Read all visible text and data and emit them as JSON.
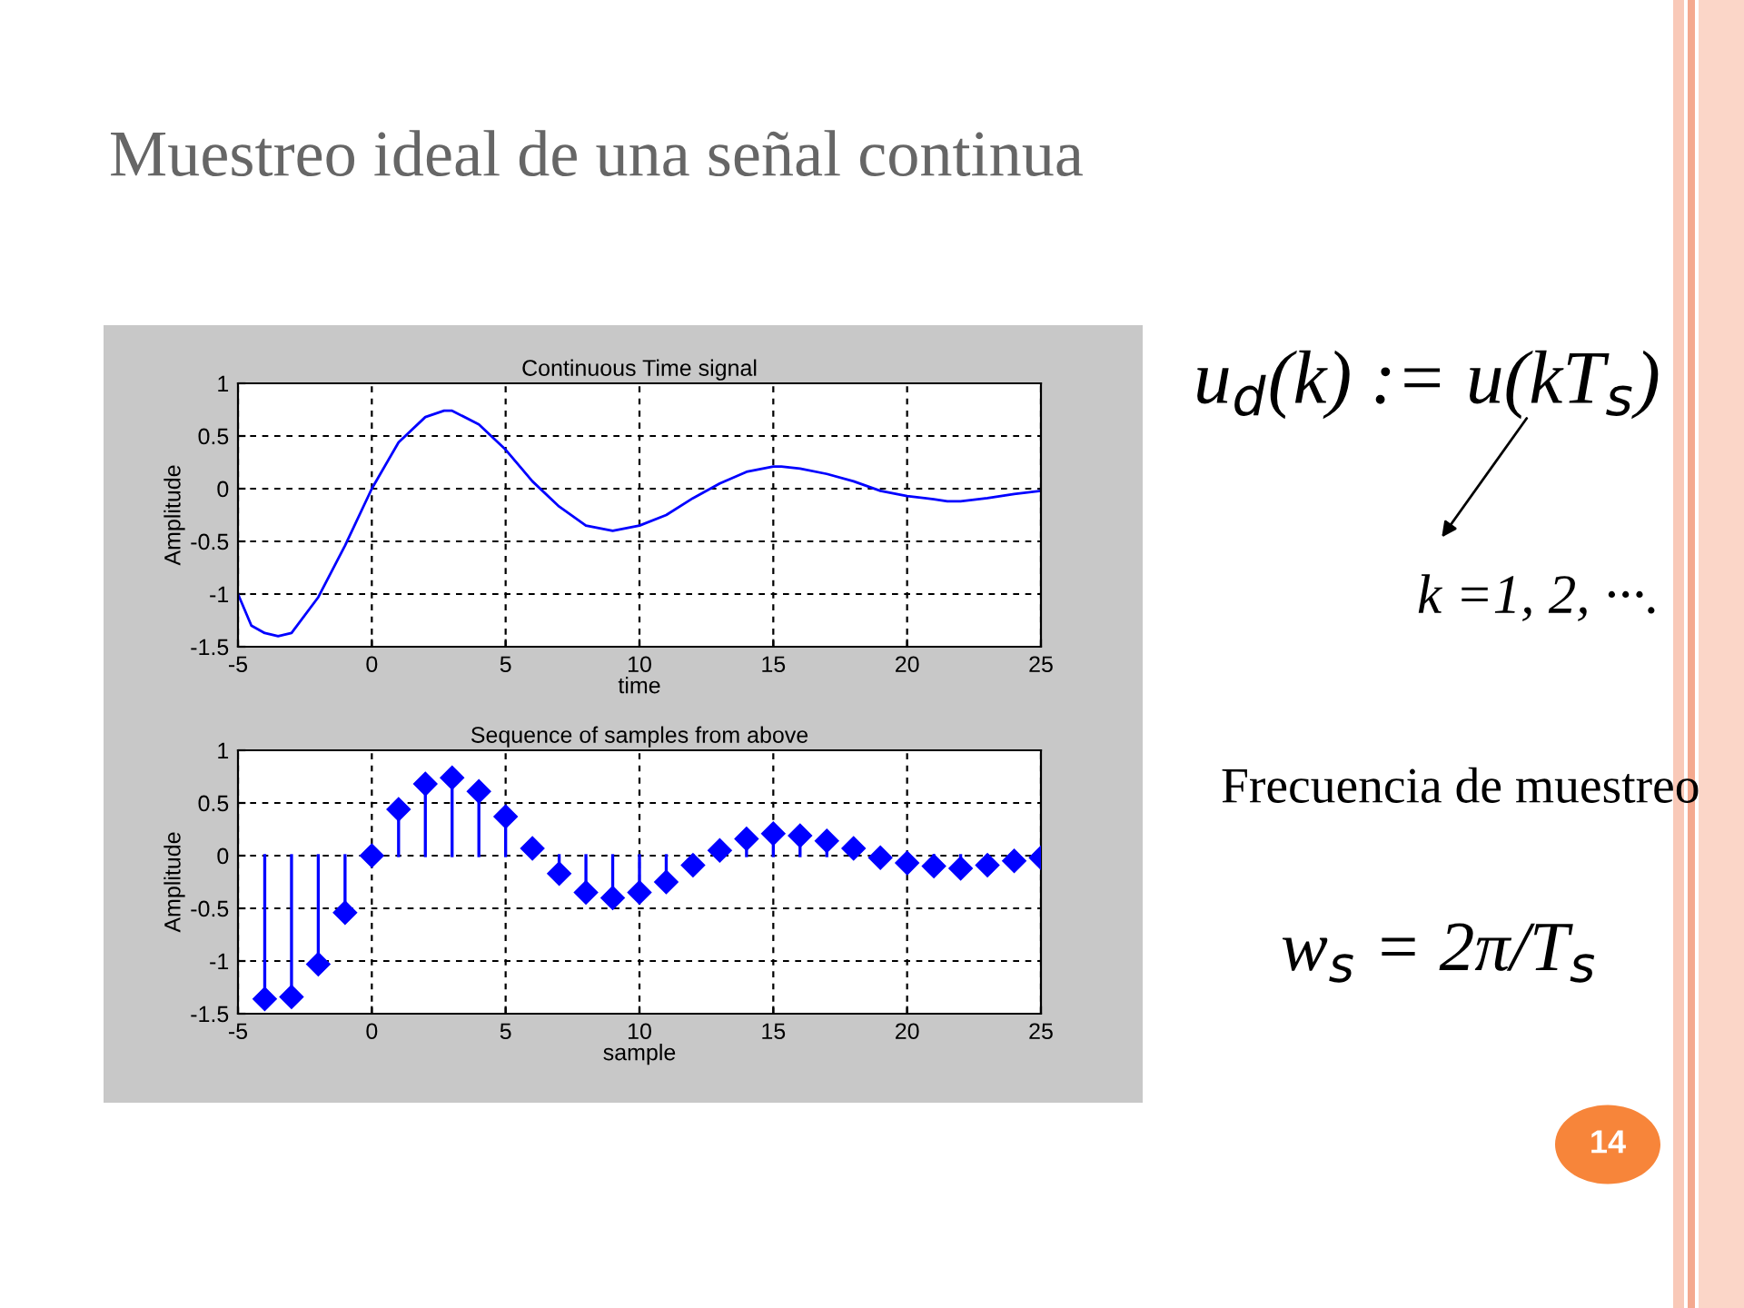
{
  "chart_data": [
    {
      "type": "line",
      "title": "Continuous Time signal",
      "xlabel": "time",
      "ylabel": "Amplitude",
      "x": [
        -5,
        -4.5,
        -4,
        -3.5,
        -3,
        -2,
        -1,
        0,
        1,
        2,
        2.7,
        3,
        4,
        5,
        6,
        7,
        8,
        9,
        10,
        11,
        12,
        13,
        14,
        15,
        15.3,
        16,
        17,
        18,
        19,
        20,
        21,
        21.5,
        22,
        23,
        24,
        25
      ],
      "series": [
        {
          "color": "#0000ff",
          "values": [
            -1.0,
            -1.3,
            -1.37,
            -1.4,
            -1.37,
            -1.03,
            -0.54,
            0,
            0.44,
            0.68,
            0.74,
            0.74,
            0.61,
            0.37,
            0.07,
            -0.17,
            -0.35,
            -0.4,
            -0.35,
            -0.25,
            -0.09,
            0.05,
            0.16,
            0.21,
            0.21,
            0.19,
            0.14,
            0.07,
            -0.02,
            -0.07,
            -0.1,
            -0.12,
            -0.12,
            -0.09,
            -0.05,
            -0.02
          ]
        }
      ],
      "xlim": [
        -5,
        25
      ],
      "xticks": [
        -5,
        0,
        5,
        10,
        15,
        20,
        25
      ],
      "ylim": [
        -1.5,
        1
      ],
      "yticks": [
        -1.5,
        -1,
        -0.5,
        0,
        0.5,
        1
      ],
      "grid": true,
      "line_style": "solid",
      "marker": "none",
      "annotations": [
        "Muestreo ideal de una señal continua",
        "u$_{d}$(k) := u(kT$_{s}$)",
        "k =1, 2, ···.",
        "Frecuencia de muestreo",
        "w$_{s}$ = 2π/T$_{s}$",
        "14"
      ]
    },
    {
      "type": "lollipop",
      "title": "Sequence of samples from above",
      "xlabel": "sample",
      "ylabel": "Amplitude",
      "x": [
        -4,
        -3,
        -2,
        -1,
        0,
        1,
        2,
        3,
        4,
        5,
        6,
        7,
        8,
        9,
        10,
        11,
        12,
        13,
        14,
        15,
        16,
        17,
        18,
        19,
        20,
        21,
        22,
        23,
        24,
        25
      ],
      "series": [
        {
          "color": "#0000ff",
          "values": [
            -1.36,
            -1.34,
            -1.03,
            -0.54,
            0,
            0.44,
            0.68,
            0.74,
            0.61,
            0.37,
            0.07,
            -0.17,
            -0.35,
            -0.4,
            -0.35,
            -0.25,
            -0.09,
            0.05,
            0.16,
            0.21,
            0.19,
            0.14,
            0.07,
            -0.02,
            -0.07,
            -0.1,
            -0.12,
            -0.09,
            -0.05,
            -0.02
          ]
        }
      ],
      "xlim": [
        -5,
        25
      ],
      "xticks": [
        -5,
        0,
        5,
        10,
        15,
        20,
        25
      ],
      "ylim": [
        -1.5,
        1
      ],
      "yticks": [
        -1.5,
        -1,
        -0.5,
        0,
        0.5,
        1
      ],
      "grid": true,
      "marker": "diamond"
    }
  ]
}
